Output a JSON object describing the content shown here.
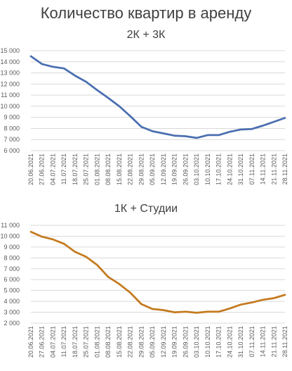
{
  "page": {
    "title": "Количество квартир в аренду"
  },
  "chart_data": [
    {
      "type": "line",
      "title": "2К + 3К",
      "categories": [
        "20.06.2021",
        "27.06.2021",
        "04.07.2021",
        "11.07.2021",
        "18.07.2021",
        "25.07.2021",
        "01.08.2021",
        "08.08.2021",
        "15.08.2021",
        "22.08.2021",
        "29.08.2021",
        "05.09.2021",
        "12.09.2021",
        "19.09.2021",
        "26.09.2021",
        "03.10.2021",
        "10.10.2021",
        "17.10.2021",
        "24.10.2021",
        "31.10.2021",
        "07.11.2021",
        "14.11.2021",
        "21.11.2021",
        "28.11.2021"
      ],
      "series": [
        {
          "values": [
            14500,
            13800,
            13550,
            13400,
            12750,
            12200,
            11450,
            10750,
            10000,
            9100,
            8150,
            7750,
            7550,
            7350,
            7300,
            7150,
            7400,
            7400,
            7700,
            7900,
            7950,
            8250,
            8600,
            8950
          ],
          "color": "#4a6fb0"
        }
      ],
      "ylim": [
        6000,
        15000
      ],
      "yticks": [
        "6 000",
        "7 000",
        "8 000",
        "9 000",
        "10 000",
        "11 000",
        "12 000",
        "13 000",
        "14 000",
        "15 000"
      ],
      "grid": true
    },
    {
      "type": "line",
      "title": "1К + Студии",
      "categories": [
        "20.06.2021",
        "27.06.2021",
        "04.07.2021",
        "11.07.2021",
        "18.07.2021",
        "25.07.2021",
        "01.08.2021",
        "08.08.2021",
        "15.08.2021",
        "22.08.2021",
        "29.08.2021",
        "05.09.2021",
        "12.09.2021",
        "19.09.2021",
        "26.09.2021",
        "03.10.2021",
        "10.10.2021",
        "17.10.2021",
        "24.10.2021",
        "31.10.2021",
        "07.11.2021",
        "14.11.2021",
        "21.11.2021",
        "28.11.2021"
      ],
      "series": [
        {
          "values": [
            10400,
            9950,
            9700,
            9300,
            8550,
            8100,
            7350,
            6250,
            5600,
            4800,
            3750,
            3300,
            3200,
            3000,
            3050,
            2950,
            3050,
            3050,
            3350,
            3700,
            3900,
            4150,
            4300,
            4600
          ],
          "color": "#c47a1e"
        }
      ],
      "ylim": [
        2000,
        11000
      ],
      "yticks": [
        "2 000",
        "3 000",
        "4 000",
        "5 000",
        "6 000",
        "7 000",
        "8 000",
        "9 000",
        "10 000",
        "11 000"
      ],
      "grid": true
    }
  ]
}
